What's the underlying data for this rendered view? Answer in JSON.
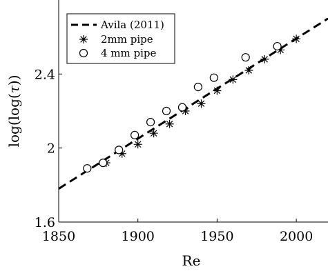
{
  "chart_data": {
    "type": "scatter",
    "xlabel": "Re",
    "ylabel_prefix": "log(log(",
    "ylabel_symbol": "τ",
    "ylabel_suffix": "))",
    "xlim": [
      1850,
      2020
    ],
    "ylim": [
      1.6,
      2.8
    ],
    "xticks": [
      1850,
      1900,
      1950,
      2000
    ],
    "xtick_labels": [
      "1850",
      "1900",
      "1950",
      "2000"
    ],
    "yticks": [
      1.6,
      2.0,
      2.4
    ],
    "ytick_labels": [
      "1.6",
      "2",
      "2.4"
    ],
    "grid": false,
    "legend_position": "top-left",
    "series": [
      {
        "name": "Avila (2011)",
        "style": "dashed-line",
        "color": "#000000",
        "x": [
          1850,
          2020
        ],
        "y": [
          1.78,
          2.7
        ]
      },
      {
        "name": "2mm pipe",
        "style": "asterisk",
        "color": "#000000",
        "x": [
          1880,
          1890,
          1900,
          1910,
          1920,
          1930,
          1940,
          1950,
          1960,
          1970,
          1980,
          1990,
          2000
        ],
        "y": [
          1.92,
          1.97,
          2.02,
          2.08,
          2.13,
          2.2,
          2.24,
          2.31,
          2.37,
          2.42,
          2.48,
          2.53,
          2.59
        ]
      },
      {
        "name": "4 mm pipe",
        "style": "circle",
        "color": "#000000",
        "x": [
          1868,
          1878,
          1888,
          1898,
          1908,
          1918,
          1928,
          1938,
          1948,
          1968,
          1988
        ],
        "y": [
          1.89,
          1.92,
          1.99,
          2.07,
          2.14,
          2.2,
          2.22,
          2.33,
          2.38,
          2.49,
          2.55
        ]
      }
    ]
  }
}
